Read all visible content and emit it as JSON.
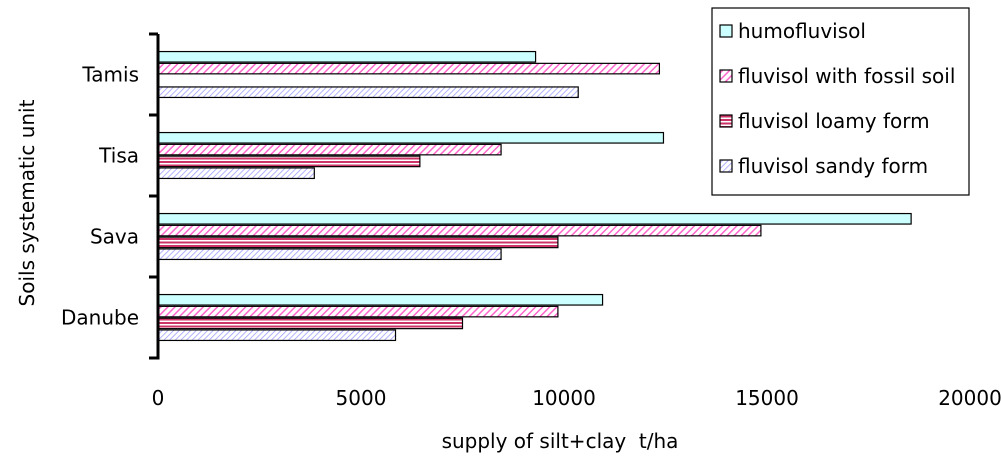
{
  "chart_data": {
    "type": "bar",
    "orientation": "horizontal",
    "categories": [
      "Danube",
      "Sava",
      "Tisa",
      "Tamis"
    ],
    "series": [
      {
        "name": "humofluvisol",
        "color": "#CCFFFF",
        "pattern": "solid",
        "values": [
          10950,
          18550,
          12450,
          9300
        ]
      },
      {
        "name": "fluvisol with fossil soil",
        "color": "#FF66CC",
        "pattern": "diagonal",
        "values": [
          9850,
          14850,
          8450,
          12350
        ]
      },
      {
        "name": "fluvisol loamy form",
        "color": "#CC3366",
        "pattern": "horizontal",
        "values": [
          7500,
          9850,
          6450,
          null
        ]
      },
      {
        "name": "fluvisol sandy form",
        "color": "#9999FF",
        "pattern": "diagonal-light",
        "values": [
          5850,
          8450,
          3850,
          10350
        ]
      }
    ],
    "xlabel": "supply of silt+clay  t/ha",
    "ylabel": "Soils systematic unit",
    "xlim": [
      0,
      20000
    ],
    "xticks": [
      "0",
      "5000",
      "10000",
      "15000",
      "20000"
    ],
    "legend_position": "top-right",
    "grid": false
  }
}
